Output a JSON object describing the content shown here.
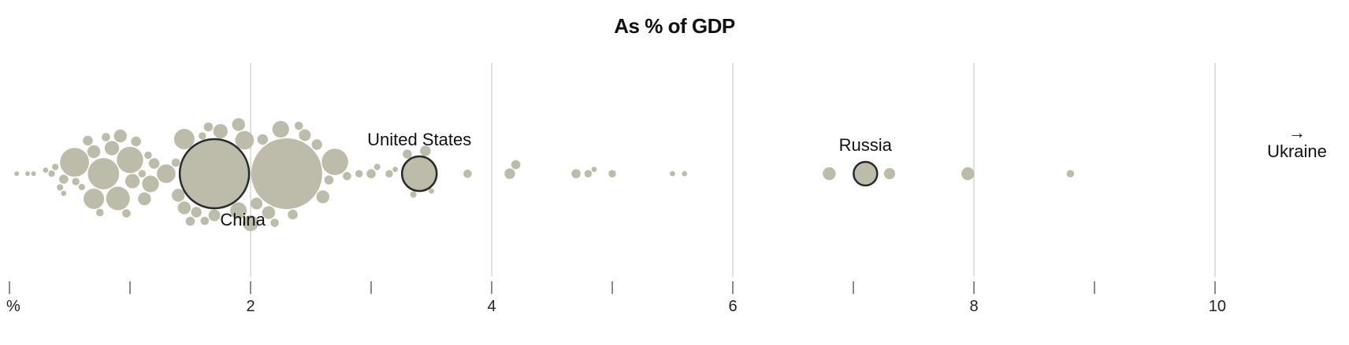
{
  "chart_data": {
    "type": "scatter",
    "title": "As % of GDP",
    "xlabel": "",
    "ylabel": "",
    "xlim": [
      0,
      10
    ],
    "unit_label": "%",
    "tick_values": [
      0,
      1,
      2,
      3,
      4,
      5,
      6,
      7,
      8,
      9,
      10
    ],
    "tick_labels": [
      {
        "value": 0,
        "label": "%"
      },
      {
        "value": 2,
        "label": "2"
      },
      {
        "value": 4,
        "label": "4"
      },
      {
        "value": 6,
        "label": "6"
      },
      {
        "value": 8,
        "label": "8"
      },
      {
        "value": 10,
        "label": "10"
      }
    ],
    "grid_values": [
      2,
      4,
      6,
      8,
      10
    ],
    "colors": {
      "bubble": "#bdbcab",
      "highlight_stroke": "#2a2a2a",
      "grid": "#d6d6d6"
    },
    "highlighted": [
      {
        "name": "China",
        "value": 1.7
      },
      {
        "name": "United States",
        "value": 3.4
      },
      {
        "name": "Russia",
        "value": 7.1
      },
      {
        "name": "Ukraine",
        "value": "> 10",
        "arrow": "→"
      }
    ],
    "points": [
      {
        "value": 0.06,
        "size": 1
      },
      {
        "value": 0.15,
        "size": 1
      },
      {
        "value": 0.2,
        "size": 1
      },
      {
        "value": 0.3,
        "size": 2
      },
      {
        "value": 0.35,
        "size": 3
      },
      {
        "value": 0.38,
        "size": 3
      },
      {
        "value": 0.42,
        "size": 3
      },
      {
        "value": 0.45,
        "size": 2
      },
      {
        "value": 0.45,
        "size": 6
      },
      {
        "value": 0.54,
        "size": 60
      },
      {
        "value": 0.55,
        "size": 4
      },
      {
        "value": 0.6,
        "size": 3
      },
      {
        "value": 0.65,
        "size": 7
      },
      {
        "value": 0.7,
        "size": 30
      },
      {
        "value": 0.7,
        "size": 12
      },
      {
        "value": 0.75,
        "size": 4
      },
      {
        "value": 0.78,
        "size": 70
      },
      {
        "value": 0.8,
        "size": 5
      },
      {
        "value": 0.85,
        "size": 15
      },
      {
        "value": 0.9,
        "size": 40
      },
      {
        "value": 0.92,
        "size": 12
      },
      {
        "value": 0.97,
        "size": 5
      },
      {
        "value": 1.0,
        "size": 50
      },
      {
        "value": 1.02,
        "size": 15
      },
      {
        "value": 1.05,
        "size": 7
      },
      {
        "value": 1.1,
        "size": 4
      },
      {
        "value": 1.12,
        "size": 12
      },
      {
        "value": 1.15,
        "size": 4
      },
      {
        "value": 1.17,
        "size": 20
      },
      {
        "value": 1.2,
        "size": 8
      },
      {
        "value": 1.3,
        "size": 25
      },
      {
        "value": 1.38,
        "size": 5
      },
      {
        "value": 1.4,
        "size": 12
      },
      {
        "value": 1.45,
        "size": 30
      },
      {
        "value": 1.45,
        "size": 12
      },
      {
        "value": 1.5,
        "size": 6
      },
      {
        "value": 1.55,
        "size": 8
      },
      {
        "value": 1.6,
        "size": 4
      },
      {
        "value": 1.62,
        "size": 5
      },
      {
        "value": 1.65,
        "size": 6
      },
      {
        "value": 1.7,
        "size": 10
      },
      {
        "value": 1.75,
        "size": 15
      },
      {
        "value": 1.9,
        "size": 12
      },
      {
        "value": 1.9,
        "size": 20
      },
      {
        "value": 1.95,
        "size": 25
      },
      {
        "value": 2.0,
        "size": 18
      },
      {
        "value": 2.05,
        "size": 10
      },
      {
        "value": 2.1,
        "size": 8
      },
      {
        "value": 2.15,
        "size": 12
      },
      {
        "value": 2.2,
        "size": 5
      },
      {
        "value": 2.25,
        "size": 20
      },
      {
        "value": 2.3,
        "size": 360
      },
      {
        "value": 2.35,
        "size": 7
      },
      {
        "value": 2.4,
        "size": 5
      },
      {
        "value": 2.45,
        "size": 10
      },
      {
        "value": 2.55,
        "size": 8
      },
      {
        "value": 2.6,
        "size": 12
      },
      {
        "value": 2.65,
        "size": 6
      },
      {
        "value": 2.7,
        "size": 50
      },
      {
        "value": 2.8,
        "size": 5
      },
      {
        "value": 2.9,
        "size": 4
      },
      {
        "value": 3.0,
        "size": 6
      },
      {
        "value": 3.05,
        "size": 3
      },
      {
        "value": 3.15,
        "size": 4
      },
      {
        "value": 3.2,
        "size": 2
      },
      {
        "value": 3.3,
        "size": 6
      },
      {
        "value": 3.35,
        "size": 3
      },
      {
        "value": 3.45,
        "size": 8
      },
      {
        "value": 3.5,
        "size": 2
      },
      {
        "value": 3.8,
        "size": 5
      },
      {
        "value": 4.15,
        "size": 8
      },
      {
        "value": 4.2,
        "size": 6
      },
      {
        "value": 4.7,
        "size": 6
      },
      {
        "value": 4.8,
        "size": 4
      },
      {
        "value": 4.85,
        "size": 2
      },
      {
        "value": 5.0,
        "size": 4
      },
      {
        "value": 5.5,
        "size": 2
      },
      {
        "value": 5.6,
        "size": 2
      },
      {
        "value": 6.8,
        "size": 12
      },
      {
        "value": 7.3,
        "size": 9
      },
      {
        "value": 7.95,
        "size": 12
      },
      {
        "value": 8.8,
        "size": 4
      }
    ]
  }
}
